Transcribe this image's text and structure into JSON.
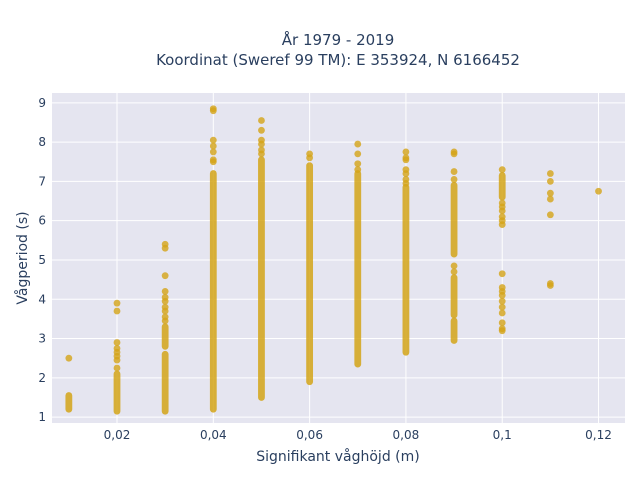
{
  "chart_data": {
    "type": "scatter",
    "title_lines": [
      "År 1979 - 2019",
      "Koordinat (Sweref 99 TM): E 353924, N 6166452"
    ],
    "xlabel": "Signifikant våghöjd (m)",
    "ylabel": "Vågperiod (s)",
    "xlim": [
      0.0065,
      0.1255
    ],
    "ylim": [
      0.85,
      9.25
    ],
    "x_ticks": [
      0.02,
      0.04,
      0.06,
      0.08,
      0.1,
      0.12
    ],
    "x_tick_labels": [
      "0,02",
      "0,04",
      "0,06",
      "0,08",
      "0,1",
      "0,12"
    ],
    "y_ticks": [
      1,
      2,
      3,
      4,
      5,
      6,
      7,
      8,
      9
    ],
    "y_tick_labels": [
      "1",
      "2",
      "3",
      "4",
      "5",
      "6",
      "7",
      "8",
      "9"
    ],
    "grid": true,
    "background": "#e5e5f0",
    "marker_color": "#d4a418",
    "columns": [
      {
        "x": 0.01,
        "ranges": [
          [
            1.2,
            1.55
          ]
        ],
        "points": [
          2.5
        ]
      },
      {
        "x": 0.02,
        "ranges": [
          [
            1.15,
            2.1
          ]
        ],
        "points": [
          2.25,
          2.45,
          2.55,
          2.65,
          2.75,
          2.9,
          3.7,
          3.9
        ]
      },
      {
        "x": 0.03,
        "ranges": [
          [
            1.15,
            2.6
          ],
          [
            2.8,
            3.3
          ]
        ],
        "points": [
          3.45,
          3.55,
          3.7,
          3.8,
          3.95,
          4.05,
          4.2,
          4.6,
          5.3,
          5.4
        ]
      },
      {
        "x": 0.04,
        "ranges": [
          [
            1.2,
            7.2
          ]
        ],
        "points": [
          7.5,
          7.55,
          7.75,
          7.9,
          8.05,
          8.8,
          8.85
        ]
      },
      {
        "x": 0.05,
        "ranges": [
          [
            1.5,
            7.55
          ]
        ],
        "points": [
          7.7,
          7.8,
          7.95,
          8.05,
          8.3,
          8.55
        ]
      },
      {
        "x": 0.06,
        "ranges": [
          [
            1.9,
            7.4
          ]
        ],
        "points": [
          7.6,
          7.7
        ]
      },
      {
        "x": 0.07,
        "ranges": [
          [
            2.35,
            7.2
          ]
        ],
        "points": [
          7.3,
          7.45,
          7.7,
          7.95
        ]
      },
      {
        "x": 0.08,
        "ranges": [
          [
            2.65,
            6.85
          ]
        ],
        "points": [
          6.95,
          7.05,
          7.2,
          7.3,
          7.55,
          7.6,
          7.75
        ]
      },
      {
        "x": 0.09,
        "ranges": [
          [
            2.95,
            3.45
          ],
          [
            3.6,
            4.55
          ],
          [
            5.15,
            6.9
          ]
        ],
        "points": [
          4.7,
          4.85,
          7.05,
          7.25,
          7.7,
          7.75
        ]
      },
      {
        "x": 0.1,
        "ranges": [
          [
            6.6,
            7.15
          ]
        ],
        "points": [
          3.2,
          3.25,
          3.4,
          3.65,
          3.8,
          3.95,
          4.1,
          4.2,
          4.3,
          4.65,
          5.9,
          6.0,
          6.1,
          6.25,
          6.35,
          6.45,
          7.3
        ]
      },
      {
        "x": 0.11,
        "ranges": [],
        "points": [
          4.35,
          4.4,
          6.15,
          6.55,
          6.7,
          7.0,
          7.2
        ]
      },
      {
        "x": 0.12,
        "ranges": [],
        "points": [
          6.75
        ]
      }
    ]
  }
}
